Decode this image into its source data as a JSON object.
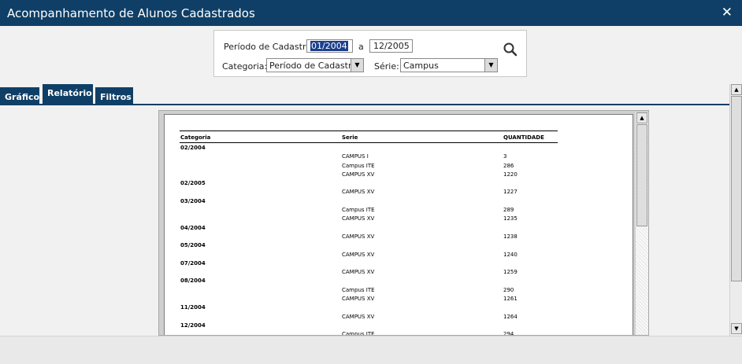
{
  "window": {
    "title": "Acompanhamento de Alunos Cadastrados",
    "close_label": "✕"
  },
  "filters": {
    "periodo_label": "Período de Cadastro",
    "date_from": "01/2004",
    "date_sep": "a",
    "date_to": "12/2005",
    "categoria_label": "Categoria:",
    "categoria_value": "Período de Cadastro",
    "serie_label": "Série:",
    "serie_value": "Campus"
  },
  "tabs": [
    {
      "label": "Gráfico"
    },
    {
      "label": "Relatório",
      "active": true
    },
    {
      "label": "Filtros"
    }
  ],
  "report": {
    "headers": {
      "categoria": "Categoria",
      "serie": "Serie",
      "quantidade": "QUANTIDADE"
    },
    "groups": [
      {
        "category": "02/2004",
        "rows": [
          {
            "serie": "CAMPUS I",
            "qtd": "3"
          },
          {
            "serie": "Campus ITE",
            "qtd": "286"
          },
          {
            "serie": "CAMPUS XV",
            "qtd": "1220"
          }
        ]
      },
      {
        "category": "02/2005",
        "rows": [
          {
            "serie": "CAMPUS XV",
            "qtd": "1227"
          }
        ]
      },
      {
        "category": "03/2004",
        "rows": [
          {
            "serie": "Campus ITE",
            "qtd": "289"
          },
          {
            "serie": "CAMPUS XV",
            "qtd": "1235"
          }
        ]
      },
      {
        "category": "04/2004",
        "rows": [
          {
            "serie": "CAMPUS XV",
            "qtd": "1238"
          }
        ]
      },
      {
        "category": "05/2004",
        "rows": [
          {
            "serie": "CAMPUS XV",
            "qtd": "1240"
          }
        ]
      },
      {
        "category": "07/2004",
        "rows": [
          {
            "serie": "CAMPUS XV",
            "qtd": "1259"
          }
        ]
      },
      {
        "category": "08/2004",
        "rows": [
          {
            "serie": "Campus ITE",
            "qtd": "290"
          },
          {
            "serie": "CAMPUS XV",
            "qtd": "1261"
          }
        ]
      },
      {
        "category": "11/2004",
        "rows": [
          {
            "serie": "CAMPUS XV",
            "qtd": "1264"
          }
        ]
      },
      {
        "category": "12/2004",
        "rows": [
          {
            "serie": "Campus ITE",
            "qtd": "294"
          }
        ]
      }
    ]
  }
}
